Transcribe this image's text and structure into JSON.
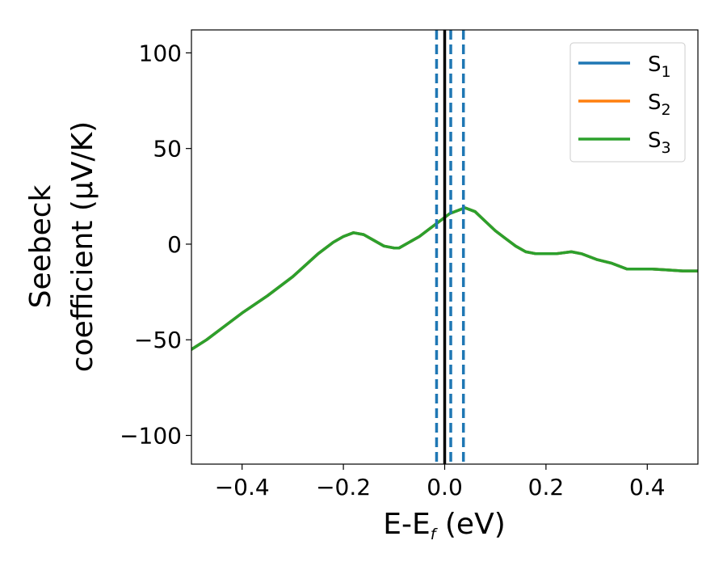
{
  "chart_data": {
    "type": "line",
    "xlabel": {
      "main": "E-E",
      "sub": "f",
      "unit": " (eV)"
    },
    "ylabel": {
      "line1": "Seebeck",
      "line2": "coefficient  (μV/K)"
    },
    "xlim": [
      -0.5,
      0.5
    ],
    "ylim": [
      -115,
      112
    ],
    "xticks": [
      -0.4,
      -0.2,
      0.0,
      0.2,
      0.4
    ],
    "xtick_labels": [
      "−0.4",
      "−0.2",
      "0.0",
      "0.2",
      "0.4"
    ],
    "yticks": [
      -100,
      -50,
      0,
      50,
      100
    ],
    "ytick_labels": [
      "−100",
      "−50",
      "0",
      "50",
      "100"
    ],
    "grid": false,
    "legend_position": "top-right",
    "series": [
      {
        "name": "S",
        "sub": "1",
        "color": "#1f77b4",
        "x": [
          -0.5,
          -0.47,
          -0.44,
          -0.4,
          -0.35,
          -0.3,
          -0.25,
          -0.22,
          -0.2,
          -0.18,
          -0.16,
          -0.14,
          -0.12,
          -0.1,
          -0.09,
          -0.07,
          -0.05,
          -0.03,
          -0.01,
          0.01,
          0.03,
          0.04,
          0.06,
          0.08,
          0.1,
          0.12,
          0.14,
          0.16,
          0.18,
          0.2,
          0.22,
          0.25,
          0.27,
          0.3,
          0.33,
          0.36,
          0.38,
          0.41,
          0.44,
          0.47,
          0.5
        ],
        "y": [
          -55,
          -50,
          -44,
          -36,
          -27,
          -17,
          -5,
          1,
          4,
          6,
          5,
          2,
          -1,
          -2,
          -2,
          1,
          4,
          8,
          12,
          16,
          18,
          19,
          17,
          12,
          7,
          3,
          -1,
          -4,
          -5,
          -5,
          -5,
          -4,
          -5,
          -8,
          -10,
          -13,
          -13,
          -13,
          -13.5,
          -14,
          -14
        ]
      },
      {
        "name": "S",
        "sub": "2",
        "color": "#ff7f0e",
        "x": [
          -0.5,
          -0.47,
          -0.44,
          -0.4,
          -0.35,
          -0.3,
          -0.25,
          -0.22,
          -0.2,
          -0.18,
          -0.16,
          -0.14,
          -0.12,
          -0.1,
          -0.09,
          -0.07,
          -0.05,
          -0.03,
          -0.01,
          0.01,
          0.03,
          0.04,
          0.06,
          0.08,
          0.1,
          0.12,
          0.14,
          0.16,
          0.18,
          0.2,
          0.22,
          0.25,
          0.27,
          0.3,
          0.33,
          0.36,
          0.38,
          0.41,
          0.44,
          0.47,
          0.5
        ],
        "y": [
          -55,
          -50,
          -44,
          -36,
          -27,
          -17,
          -5,
          1,
          4,
          6,
          5,
          2,
          -1,
          -2,
          -2,
          1,
          4,
          8,
          12,
          16,
          18,
          19,
          17,
          12,
          7,
          3,
          -1,
          -4,
          -5,
          -5,
          -5,
          -4,
          -5,
          -8,
          -10,
          -13,
          -13,
          -13,
          -13.5,
          -14,
          -14
        ]
      },
      {
        "name": "S",
        "sub": "3",
        "color": "#2ca02c",
        "x": [
          -0.5,
          -0.47,
          -0.44,
          -0.4,
          -0.35,
          -0.3,
          -0.25,
          -0.22,
          -0.2,
          -0.18,
          -0.16,
          -0.14,
          -0.12,
          -0.1,
          -0.09,
          -0.07,
          -0.05,
          -0.03,
          -0.01,
          0.01,
          0.03,
          0.04,
          0.06,
          0.08,
          0.1,
          0.12,
          0.14,
          0.16,
          0.18,
          0.2,
          0.22,
          0.25,
          0.27,
          0.3,
          0.33,
          0.36,
          0.38,
          0.41,
          0.44,
          0.47,
          0.5
        ],
        "y": [
          -55,
          -50,
          -44,
          -36,
          -27,
          -17,
          -5,
          1,
          4,
          6,
          5,
          2,
          -1,
          -2,
          -2,
          1,
          4,
          8,
          12,
          16,
          18,
          19,
          17,
          12,
          7,
          3,
          -1,
          -4,
          -5,
          -5,
          -5,
          -4,
          -5,
          -8,
          -10,
          -13,
          -13,
          -13,
          -13.5,
          -14,
          -14
        ]
      }
    ],
    "vlines": [
      {
        "x": 0.0,
        "style": "solid",
        "color": "#000000"
      },
      {
        "x": -0.016,
        "style": "dashed",
        "color": "#1f77b4"
      },
      {
        "x": 0.012,
        "style": "dashed",
        "color": "#1f77b4"
      },
      {
        "x": 0.037,
        "style": "dashed",
        "color": "#1f77b4"
      }
    ]
  }
}
